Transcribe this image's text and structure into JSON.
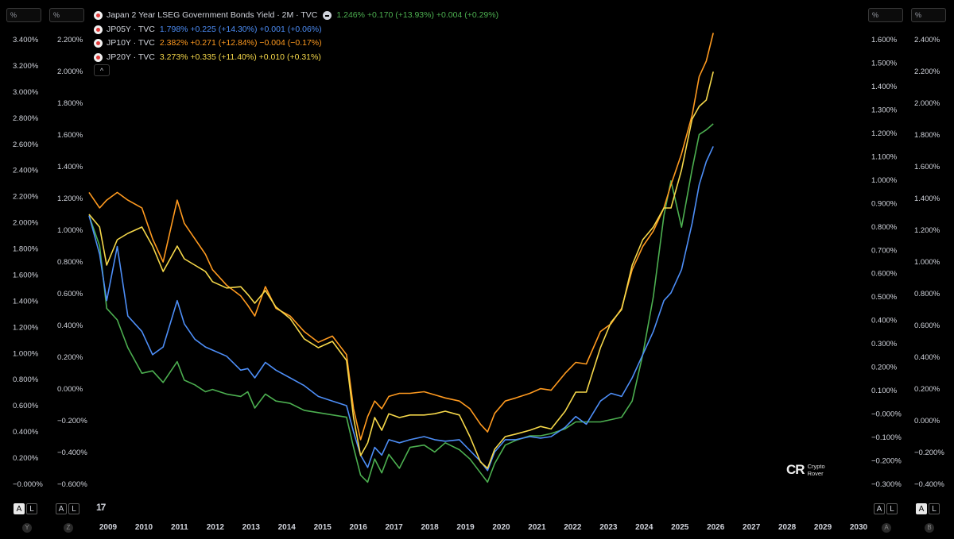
{
  "axis_units": {
    "y": "%",
    "z": "%",
    "a": "%",
    "b": "%"
  },
  "legend": {
    "main": {
      "title": "Japan 2 Year LSEG Government Bonds Yield · 2M · TVC",
      "values": "1.246%  +0.170 (+13.93%)  +0.004 (+0.29%)",
      "color": "#4caf50"
    },
    "series": [
      {
        "symbol": "JP05Y · TVC",
        "values": "1.798%  +0.225 (+14.30%)  +0.001 (+0.06%)",
        "color": "#4d8ef7"
      },
      {
        "symbol": "JP10Y · TVC",
        "values": "2.382%  +0.271 (+12.84%)  −0.004 (−0.17%)",
        "color": "#ff9a1f"
      },
      {
        "symbol": "JP20Y · TVC",
        "values": "3.273%  +0.335 (+11.40%)  +0.010 (+0.31%)",
        "color": "#f6d84a"
      }
    ],
    "collapse_glyph": "^"
  },
  "scale_buttons": {
    "a_label": "A",
    "l_label": "L"
  },
  "axis_tags": {
    "y": "Y",
    "z": "Z",
    "a": "A",
    "b": "B"
  },
  "logo": "17",
  "watermark": {
    "mark": "CR",
    "line1": "Crypto",
    "line2": "Rover"
  },
  "chart_data": {
    "type": "line",
    "x_axis_years": [
      "2009",
      "2010",
      "2011",
      "2012",
      "2013",
      "2014",
      "2015",
      "2016",
      "2017",
      "2018",
      "2019",
      "2020",
      "2021",
      "2022",
      "2023",
      "2024",
      "2025",
      "2026",
      "2027",
      "2028",
      "2029",
      "2030"
    ],
    "x_range": [
      2008.5,
      2030.5
    ],
    "axes": {
      "Y": {
        "series": "JP20Y",
        "ticks": [
          "3.400%",
          "3.200%",
          "3.000%",
          "2.800%",
          "2.600%",
          "2.400%",
          "2.200%",
          "2.000%",
          "1.800%",
          "1.600%",
          "1.400%",
          "1.200%",
          "1.000%",
          "0.800%",
          "0.600%",
          "0.400%",
          "0.200%",
          "−0.000%"
        ],
        "range": [
          -0.05,
          3.6
        ]
      },
      "Z": {
        "series": "JP10Y",
        "ticks": [
          "2.200%",
          "2.000%",
          "1.800%",
          "1.600%",
          "1.400%",
          "1.200%",
          "1.000%",
          "0.800%",
          "0.600%",
          "0.400%",
          "0.200%",
          "0.000%",
          "−0.200%",
          "−0.400%",
          "−0.600%"
        ],
        "range": [
          -0.6,
          2.4
        ]
      },
      "A": {
        "series": "JP2Y",
        "ticks": [
          "1.600%",
          "1.500%",
          "1.400%",
          "1.300%",
          "1.200%",
          "1.100%",
          "1.000%",
          "0.900%",
          "0.800%",
          "0.700%",
          "0.600%",
          "0.500%",
          "0.400%",
          "0.300%",
          "0.200%",
          "0.100%",
          "−0.000%",
          "−0.100%",
          "−0.200%",
          "−0.300%"
        ],
        "range": [
          -0.35,
          1.65
        ]
      },
      "B": {
        "series": "JP05Y",
        "ticks": [
          "2.400%",
          "2.200%",
          "2.000%",
          "1.800%",
          "1.600%",
          "1.400%",
          "1.200%",
          "1.000%",
          "0.800%",
          "0.600%",
          "0.400%",
          "0.200%",
          "0.000%",
          "−0.200%",
          "−0.400%"
        ],
        "range": [
          -0.45,
          2.55
        ]
      }
    },
    "series": [
      {
        "name": "JP2Y",
        "axis": "A",
        "color": "#4caf50",
        "x": [
          2008.5,
          2008.8,
          2009.0,
          2009.3,
          2009.6,
          2010.0,
          2010.3,
          2010.6,
          2011.0,
          2011.2,
          2011.5,
          2011.8,
          2012.0,
          2012.4,
          2012.8,
          2013.0,
          2013.2,
          2013.5,
          2013.8,
          2014.2,
          2014.6,
          2015.0,
          2015.4,
          2015.8,
          2016.0,
          2016.2,
          2016.4,
          2016.6,
          2016.8,
          2017.0,
          2017.3,
          2017.6,
          2018.0,
          2018.3,
          2018.6,
          2019.0,
          2019.3,
          2019.6,
          2019.8,
          2020.0,
          2020.3,
          2020.6,
          2021.0,
          2021.3,
          2021.6,
          2022.0,
          2022.3,
          2022.6,
          2023.0,
          2023.3,
          2023.6,
          2023.9,
          2024.2,
          2024.5,
          2024.8,
          2025.0,
          2025.3,
          2025.6,
          2025.8,
          2026.0,
          2026.2
        ],
        "y": [
          0.85,
          0.72,
          0.45,
          0.4,
          0.28,
          0.17,
          0.18,
          0.13,
          0.22,
          0.14,
          0.12,
          0.09,
          0.1,
          0.08,
          0.07,
          0.09,
          0.02,
          0.08,
          0.05,
          0.04,
          0.01,
          0.0,
          -0.01,
          -0.02,
          -0.15,
          -0.27,
          -0.3,
          -0.2,
          -0.26,
          -0.18,
          -0.24,
          -0.15,
          -0.14,
          -0.17,
          -0.13,
          -0.16,
          -0.2,
          -0.26,
          -0.3,
          -0.22,
          -0.14,
          -0.12,
          -0.1,
          -0.1,
          -0.09,
          -0.07,
          -0.04,
          -0.04,
          -0.04,
          -0.03,
          -0.02,
          0.05,
          0.25,
          0.5,
          0.85,
          1.0,
          0.8,
          1.05,
          1.2,
          1.22,
          1.246
        ]
      },
      {
        "name": "JP05Y",
        "axis": "B",
        "color": "#4d8ef7",
        "x": [
          2008.5,
          2008.8,
          2009.0,
          2009.3,
          2009.6,
          2010.0,
          2010.3,
          2010.6,
          2011.0,
          2011.2,
          2011.5,
          2011.8,
          2012.0,
          2012.4,
          2012.8,
          2013.0,
          2013.2,
          2013.5,
          2013.8,
          2014.2,
          2014.6,
          2015.0,
          2015.4,
          2015.8,
          2016.0,
          2016.2,
          2016.4,
          2016.6,
          2016.8,
          2017.0,
          2017.3,
          2017.6,
          2018.0,
          2018.3,
          2018.6,
          2019.0,
          2019.3,
          2019.6,
          2019.8,
          2020.0,
          2020.3,
          2020.6,
          2021.0,
          2021.3,
          2021.6,
          2022.0,
          2022.3,
          2022.6,
          2023.0,
          2023.3,
          2023.6,
          2023.9,
          2024.2,
          2024.5,
          2024.8,
          2025.0,
          2025.3,
          2025.6,
          2025.8,
          2026.0,
          2026.2
        ],
        "y": [
          1.35,
          1.1,
          0.8,
          1.15,
          0.7,
          0.6,
          0.45,
          0.5,
          0.8,
          0.65,
          0.55,
          0.5,
          0.48,
          0.44,
          0.35,
          0.36,
          0.3,
          0.4,
          0.35,
          0.3,
          0.25,
          0.18,
          0.15,
          0.12,
          -0.05,
          -0.2,
          -0.28,
          -0.15,
          -0.2,
          -0.1,
          -0.12,
          -0.1,
          -0.08,
          -0.1,
          -0.11,
          -0.1,
          -0.17,
          -0.24,
          -0.3,
          -0.18,
          -0.1,
          -0.1,
          -0.08,
          -0.09,
          -0.08,
          -0.02,
          0.05,
          0.0,
          0.15,
          0.2,
          0.18,
          0.3,
          0.45,
          0.6,
          0.8,
          0.85,
          1.0,
          1.3,
          1.55,
          1.7,
          1.798
        ]
      },
      {
        "name": "JP10Y",
        "axis": "Z",
        "color": "#ff9a1f",
        "x": [
          2008.5,
          2008.8,
          2009.0,
          2009.3,
          2009.6,
          2010.0,
          2010.3,
          2010.6,
          2011.0,
          2011.2,
          2011.5,
          2011.8,
          2012.0,
          2012.4,
          2012.8,
          2013.0,
          2013.2,
          2013.5,
          2013.8,
          2014.2,
          2014.6,
          2015.0,
          2015.4,
          2015.8,
          2016.0,
          2016.2,
          2016.4,
          2016.6,
          2016.8,
          2017.0,
          2017.3,
          2017.6,
          2018.0,
          2018.3,
          2018.6,
          2019.0,
          2019.3,
          2019.6,
          2019.8,
          2020.0,
          2020.3,
          2020.6,
          2021.0,
          2021.3,
          2021.6,
          2022.0,
          2022.3,
          2022.6,
          2023.0,
          2023.3,
          2023.6,
          2023.9,
          2024.2,
          2024.5,
          2024.8,
          2025.0,
          2025.3,
          2025.6,
          2025.8,
          2026.0,
          2026.2
        ],
        "y": [
          1.35,
          1.25,
          1.3,
          1.35,
          1.3,
          1.25,
          1.05,
          0.9,
          1.3,
          1.15,
          1.05,
          0.95,
          0.85,
          0.75,
          0.68,
          0.62,
          0.55,
          0.74,
          0.6,
          0.55,
          0.45,
          0.38,
          0.42,
          0.3,
          -0.05,
          -0.25,
          -0.1,
          0.0,
          -0.05,
          0.03,
          0.05,
          0.05,
          0.06,
          0.04,
          0.02,
          0.0,
          -0.05,
          -0.15,
          -0.2,
          -0.08,
          0.0,
          0.02,
          0.05,
          0.08,
          0.07,
          0.18,
          0.25,
          0.24,
          0.45,
          0.5,
          0.6,
          0.85,
          1.0,
          1.1,
          1.25,
          1.4,
          1.6,
          1.85,
          2.1,
          2.2,
          2.382
        ]
      },
      {
        "name": "JP20Y",
        "axis": "Y",
        "color": "#f6d84a",
        "x": [
          2008.5,
          2008.8,
          2009.0,
          2009.3,
          2009.6,
          2010.0,
          2010.3,
          2010.6,
          2011.0,
          2011.2,
          2011.5,
          2011.8,
          2012.0,
          2012.4,
          2012.8,
          2013.0,
          2013.2,
          2013.5,
          2013.8,
          2014.2,
          2014.6,
          2015.0,
          2015.4,
          2015.8,
          2016.0,
          2016.2,
          2016.4,
          2016.6,
          2016.8,
          2017.0,
          2017.3,
          2017.6,
          2018.0,
          2018.3,
          2018.6,
          2019.0,
          2019.3,
          2019.6,
          2019.8,
          2020.0,
          2020.3,
          2020.6,
          2021.0,
          2021.3,
          2021.6,
          2022.0,
          2022.3,
          2022.6,
          2023.0,
          2023.3,
          2023.6,
          2023.9,
          2024.2,
          2024.5,
          2024.8,
          2025.0,
          2025.3,
          2025.6,
          2025.8,
          2026.0,
          2026.2
        ],
        "y": [
          2.15,
          2.05,
          1.75,
          1.95,
          2.0,
          2.05,
          1.9,
          1.7,
          1.9,
          1.8,
          1.75,
          1.7,
          1.62,
          1.57,
          1.58,
          1.52,
          1.45,
          1.55,
          1.42,
          1.33,
          1.17,
          1.1,
          1.15,
          1.0,
          0.55,
          0.25,
          0.35,
          0.55,
          0.45,
          0.58,
          0.55,
          0.57,
          0.57,
          0.58,
          0.6,
          0.57,
          0.4,
          0.2,
          0.15,
          0.3,
          0.4,
          0.42,
          0.45,
          0.48,
          0.46,
          0.6,
          0.75,
          0.75,
          1.1,
          1.3,
          1.4,
          1.75,
          1.95,
          2.05,
          2.2,
          2.2,
          2.5,
          2.9,
          3.0,
          3.05,
          3.273
        ]
      }
    ]
  }
}
